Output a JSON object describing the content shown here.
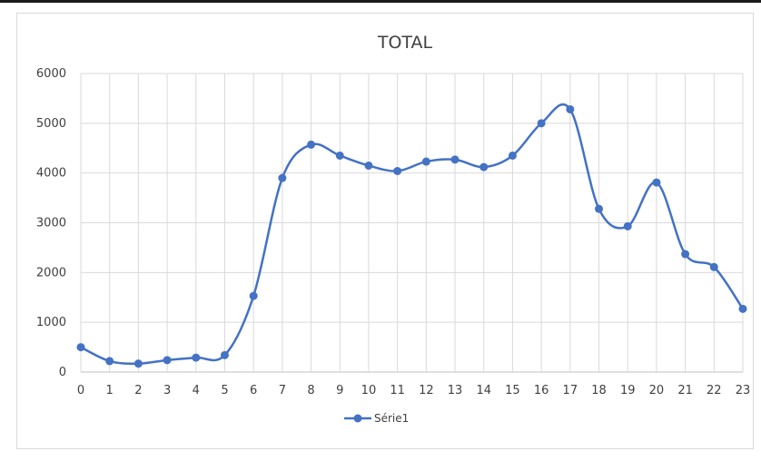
{
  "chart_data": {
    "type": "line",
    "title": "TOTAL",
    "xlabel": "",
    "ylabel": "",
    "x": [
      0,
      1,
      2,
      3,
      4,
      5,
      6,
      7,
      8,
      9,
      10,
      11,
      12,
      13,
      14,
      15,
      16,
      17,
      18,
      19,
      20,
      21,
      22,
      23
    ],
    "x_tick_labels": [
      "0",
      "1",
      "2",
      "3",
      "4",
      "5",
      "6",
      "7",
      "8",
      "9",
      "10",
      "11",
      "12",
      "13",
      "14",
      "15",
      "16",
      "17",
      "18",
      "19",
      "20",
      "21",
      "22",
      "23"
    ],
    "y_tick_labels": [
      "0",
      "1000",
      "2000",
      "3000",
      "4000",
      "5000",
      "6000"
    ],
    "ylim": [
      0,
      6000
    ],
    "y_ticks": [
      0,
      1000,
      2000,
      3000,
      4000,
      5000,
      6000
    ],
    "grid": true,
    "smooth": true,
    "legend_position": "bottom",
    "series": [
      {
        "name": "Série1",
        "color": "#4472c4",
        "values": [
          500,
          220,
          170,
          240,
          290,
          340,
          1530,
          3900,
          4570,
          4350,
          4150,
          4040,
          4230,
          4270,
          4120,
          4350,
          5000,
          5280,
          3280,
          2930,
          3810,
          2370,
          2110,
          1270
        ]
      }
    ]
  }
}
